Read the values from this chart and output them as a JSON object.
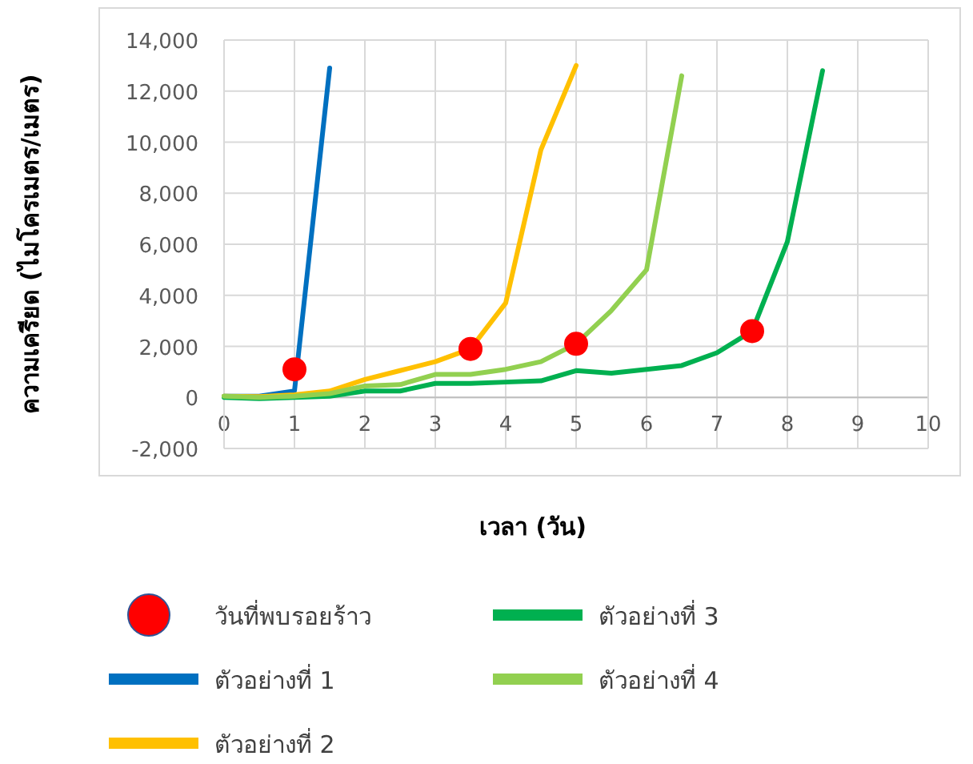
{
  "chart_data": {
    "type": "line",
    "xlabel": "เวลา (วัน)",
    "ylabel": "ความเครียด (ไมโครเมตร/เมตร)",
    "xlim": [
      0,
      10
    ],
    "xticks": [
      0,
      1,
      2,
      3,
      4,
      5,
      6,
      7,
      8,
      9,
      10
    ],
    "ylim": [
      -2000,
      14000
    ],
    "yticks": [
      {
        "value": -2000,
        "label": "-2,000"
      },
      0,
      {
        "value": 2000,
        "label": "2,000"
      },
      {
        "value": 4000,
        "label": "4,000"
      },
      {
        "value": 6000,
        "label": "6,000"
      },
      {
        "value": 8000,
        "label": "8,000"
      },
      {
        "value": 10000,
        "label": "10,000"
      },
      {
        "value": 12000,
        "label": "12,000"
      },
      {
        "value": 14000,
        "label": "14,000"
      }
    ],
    "grid": true,
    "legend": "bottom",
    "marker": "none",
    "line_style": "solid",
    "series": [
      {
        "name": "วันที่พบรอยร้าว",
        "type": "scatter",
        "marker": "circle",
        "color": "#ff0000",
        "x": [
          1,
          3.5,
          5,
          7.5
        ],
        "values": [
          1100,
          1900,
          2100,
          2600
        ]
      },
      {
        "name": "ตัวอย่างที่ 1",
        "color": "#0070c0",
        "x": [
          0,
          0.5,
          1,
          1.5
        ],
        "values": [
          50,
          50,
          250,
          12900
        ]
      },
      {
        "name": "ตัวอย่างที่ 2",
        "color": "#ffc000",
        "x": [
          0,
          0.5,
          1,
          1.5,
          2,
          2.5,
          3,
          3.5,
          4,
          4.5,
          5
        ],
        "values": [
          50,
          30,
          100,
          250,
          700,
          1050,
          1400,
          1900,
          3700,
          9700,
          13000
        ]
      },
      {
        "name": "ตัวอย่างที่ 3",
        "color": "#00b050",
        "x": [
          0,
          0.5,
          1,
          1.5,
          2,
          2.5,
          3,
          3.5,
          4,
          4.5,
          5,
          5.5,
          6,
          6.5,
          7,
          7.5,
          8,
          8.5
        ],
        "values": [
          0,
          -50,
          0,
          50,
          250,
          250,
          550,
          550,
          600,
          650,
          1050,
          950,
          1100,
          1250,
          1750,
          2600,
          6100,
          12800
        ]
      },
      {
        "name": "ตัวอย่างที่ 4",
        "color": "#92d050",
        "x": [
          0,
          0.5,
          1,
          1.5,
          2,
          2.5,
          3,
          3.5,
          4,
          4.5,
          5,
          5.5,
          6,
          6.5
        ],
        "values": [
          50,
          0,
          50,
          150,
          450,
          500,
          900,
          900,
          1100,
          1400,
          2100,
          3400,
          5000,
          12600
        ]
      }
    ]
  }
}
